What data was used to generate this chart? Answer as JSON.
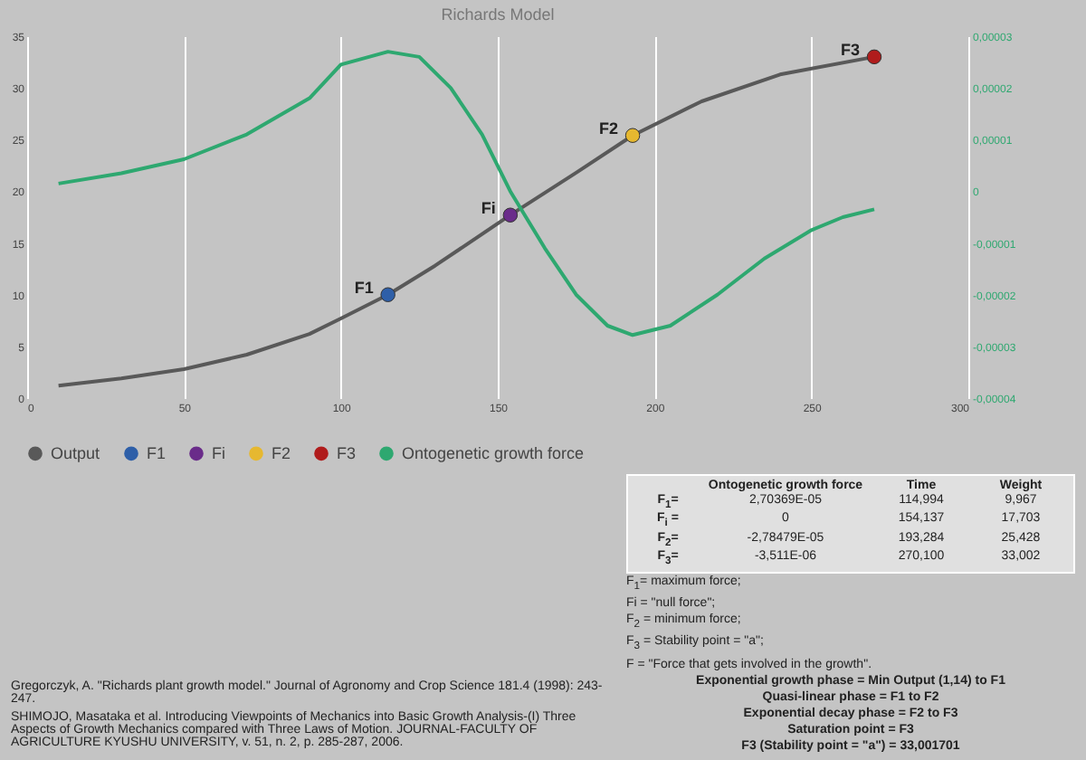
{
  "chart_data": {
    "type": "line",
    "title": "Richards Model",
    "legend": "bottom",
    "grid": "x",
    "xlim": [
      0,
      300
    ],
    "xticks": [
      0,
      50,
      100,
      150,
      200,
      250,
      300
    ],
    "ylim": [
      0,
      35
    ],
    "yticks": [
      0,
      5,
      10,
      15,
      20,
      25,
      30,
      35
    ],
    "y2lim": [
      -4e-05,
      3e-05
    ],
    "y2ticks": [
      {
        "value": -4e-05,
        "label": "-0,00004"
      },
      {
        "value": -3e-05,
        "label": "-0,00003"
      },
      {
        "value": -2e-05,
        "label": "-0,00002"
      },
      {
        "value": -1e-05,
        "label": "-0,00001"
      },
      {
        "value": 0,
        "label": "0"
      },
      {
        "value": 1e-05,
        "label": "0,00001"
      },
      {
        "value": 2e-05,
        "label": "0,00002"
      },
      {
        "value": 3e-05,
        "label": "0,00003"
      }
    ],
    "series": [
      {
        "name": "Output",
        "color": "#595959",
        "x": [
          10,
          30,
          50,
          70,
          90,
          100,
          115,
          130,
          154,
          175,
          193,
          215,
          240,
          270
        ],
        "values": [
          1.2,
          1.9,
          2.8,
          4.2,
          6.2,
          7.7,
          10,
          12.8,
          17.7,
          21.8,
          25.4,
          28.7,
          31.3,
          33
        ]
      },
      {
        "name": "F1",
        "type": "scatter",
        "marker": "circle",
        "color": "#2e5fa8",
        "x": [
          115
        ],
        "values": [
          10
        ]
      },
      {
        "name": "Fi",
        "type": "scatter",
        "marker": "circle",
        "color": "#6a2c8a",
        "x": [
          154
        ],
        "values": [
          17.7
        ]
      },
      {
        "name": "F2",
        "type": "scatter",
        "marker": "circle",
        "color": "#e6b830",
        "x": [
          193
        ],
        "values": [
          25.4
        ]
      },
      {
        "name": "F3",
        "type": "scatter",
        "marker": "circle",
        "color": "#b01c1c",
        "x": [
          270
        ],
        "values": [
          33
        ]
      },
      {
        "name": "Ontogenetic growth force",
        "axis": "y2",
        "color": "#2ea870",
        "x": [
          10,
          30,
          50,
          70,
          90,
          100,
          115,
          125,
          135,
          145,
          154,
          165,
          175,
          185,
          193,
          205,
          220,
          235,
          250,
          260,
          270
        ],
        "values": [
          1.5e-06,
          3.5e-06,
          6.2e-06,
          1.1e-05,
          1.8e-05,
          2.45e-05,
          2.7e-05,
          2.6e-05,
          2e-05,
          1.1e-05,
          0,
          -1.1e-05,
          -2e-05,
          -2.6e-05,
          -2.78e-05,
          -2.6e-05,
          -2e-05,
          -1.3e-05,
          -7.5e-06,
          -5e-06,
          -3.5e-06
        ]
      }
    ],
    "annotations": [
      "Ontogenetic growth force",
      "Time",
      "Weight",
      "F$_{1}$=",
      "2,70369E-05",
      "114,994",
      "9,967",
      "F$_{i}$ =",
      "0",
      "154,137",
      "17,703",
      "F$_{2}$=",
      "-2,78479E-05",
      "193,284",
      "25,428",
      "F$_{3}$=",
      "-3,511E-06",
      "270,100",
      "33,002",
      "F$_{1}$= maximum force;",
      "Fi = \"null force\";",
      "F$_{2}$ = minimum force;",
      "F$_{3}$ = Stability point = \"a\";",
      "F  = \"Force that gets involved in the growth\".",
      "Exponential growth phase = Min Output (1,14) to F1",
      "Quasi-linear phase = F1 to F2",
      "Exponential decay phase = F2 to F3",
      "Saturation point = F3",
      "F3 (Stability point  = \"a\") = 33,001701",
      "Gregorczyk, A. \"Richards plant growth model.\" Journal of Agronomy and Crop Science 181.4 (1998): 243-247.",
      "SHIMOJO, Masataka et al. Introducing Viewpoints of Mechanics into Basic Growth Analysis-(I) Three Aspects of Growth Mechanics compared with Three Laws of Motion. JOURNAL-FACULTY OF AGRICULTURE KYUSHU UNIVERSITY, v. 51, n. 2, p. 285-287, 2006."
    ]
  }
}
